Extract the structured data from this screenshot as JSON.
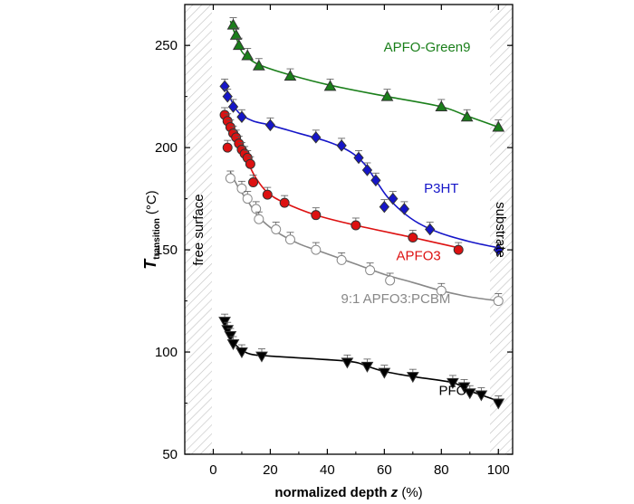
{
  "chart_data": {
    "type": "scatter",
    "xlabel": "normalized depth",
    "xlabel_var": "z",
    "xlabel_unit": "(%)",
    "ylabel_symbol": "T",
    "ylabel_sub": "transition",
    "ylabel_unit": "(°C)",
    "xlim": [
      -10,
      105
    ],
    "ylim": [
      50,
      270
    ],
    "xticks": [
      0,
      20,
      40,
      60,
      80,
      100
    ],
    "yticks": [
      50,
      100,
      150,
      200,
      250
    ],
    "x_tick_labels": [
      "0",
      "20",
      "40",
      "60",
      "80",
      "100"
    ],
    "y_tick_labels": [
      "50",
      "100",
      "150",
      "200",
      "250"
    ],
    "shaded_regions": [
      {
        "name": "free surface",
        "x_range": [
          -10,
          0
        ]
      },
      {
        "name": "substrate",
        "x_range": [
          100,
          105
        ]
      }
    ],
    "series": [
      {
        "name": "APFO-Green9",
        "color": "#1a7f1a",
        "marker": "triangle-up",
        "filled": true,
        "label_at": [
          75,
          247
        ],
        "points": [
          [
            7,
            260
          ],
          [
            8,
            255
          ],
          [
            9,
            250
          ],
          [
            12,
            245
          ],
          [
            16,
            240
          ],
          [
            27,
            235
          ],
          [
            41,
            230
          ],
          [
            61,
            225
          ],
          [
            80,
            220
          ],
          [
            89,
            215
          ],
          [
            100,
            210
          ]
        ],
        "curve": [
          [
            6,
            262
          ],
          [
            8,
            254
          ],
          [
            10,
            247
          ],
          [
            13,
            243
          ],
          [
            17,
            240
          ],
          [
            27,
            235.5
          ],
          [
            41,
            230.5
          ],
          [
            61,
            225
          ],
          [
            80,
            220
          ],
          [
            89,
            215.5
          ],
          [
            100,
            210
          ]
        ]
      },
      {
        "name": "P3HT",
        "color": "#1515c8",
        "marker": "diamond",
        "filled": true,
        "label_at": [
          80,
          178
        ],
        "points": [
          [
            4,
            230
          ],
          [
            5,
            225
          ],
          [
            7,
            220
          ],
          [
            10,
            215
          ],
          [
            20,
            211
          ],
          [
            36,
            205
          ],
          [
            45,
            201
          ],
          [
            51,
            195
          ],
          [
            54,
            189
          ],
          [
            57,
            184
          ],
          [
            60,
            171
          ],
          [
            63,
            175
          ],
          [
            67,
            170
          ],
          [
            76,
            160
          ],
          [
            100,
            150
          ]
        ],
        "curve": [
          [
            4,
            231
          ],
          [
            6,
            224
          ],
          [
            9,
            217
          ],
          [
            14,
            213
          ],
          [
            20,
            211
          ],
          [
            30,
            207
          ],
          [
            40,
            203
          ],
          [
            48,
            198
          ],
          [
            53,
            192
          ],
          [
            57,
            184
          ],
          [
            61,
            176
          ],
          [
            66,
            169
          ],
          [
            72,
            163
          ],
          [
            80,
            158
          ],
          [
            90,
            154
          ],
          [
            100,
            151
          ]
        ]
      },
      {
        "name": "APFO3",
        "color": "#dd1111",
        "marker": "circle",
        "filled": true,
        "label_at": [
          72,
          145
        ],
        "points": [
          [
            4,
            216
          ],
          [
            5,
            213
          ],
          [
            6,
            210
          ],
          [
            7,
            207
          ],
          [
            8,
            205
          ],
          [
            9,
            202
          ],
          [
            10,
            199
          ],
          [
            11,
            197
          ],
          [
            12,
            195
          ],
          [
            13,
            192
          ],
          [
            5,
            200
          ],
          [
            14,
            183
          ],
          [
            19,
            177
          ],
          [
            25,
            173
          ],
          [
            36,
            167
          ],
          [
            50,
            162
          ],
          [
            70,
            156
          ],
          [
            86,
            150
          ]
        ],
        "curve": [
          [
            4,
            217
          ],
          [
            6,
            209
          ],
          [
            9,
            200
          ],
          [
            12,
            193
          ],
          [
            15,
            185
          ],
          [
            19,
            178
          ],
          [
            25,
            173
          ],
          [
            36,
            167
          ],
          [
            50,
            162
          ],
          [
            70,
            156
          ],
          [
            86,
            151
          ]
        ]
      },
      {
        "name": "9:1 APFO3:PCBM",
        "color": "#888888",
        "marker": "circle",
        "filled": false,
        "label_at": [
          64,
          124
        ],
        "points": [
          [
            6,
            185
          ],
          [
            10,
            180
          ],
          [
            12,
            175
          ],
          [
            15,
            170
          ],
          [
            16,
            165
          ],
          [
            22,
            160
          ],
          [
            27,
            155
          ],
          [
            36,
            150
          ],
          [
            45,
            145
          ],
          [
            55,
            140
          ],
          [
            62,
            135
          ],
          [
            80,
            130
          ],
          [
            100,
            125
          ]
        ],
        "curve": [
          [
            6,
            188
          ],
          [
            9,
            180
          ],
          [
            12,
            174
          ],
          [
            16,
            166
          ],
          [
            22,
            159
          ],
          [
            30,
            153
          ],
          [
            40,
            148
          ],
          [
            50,
            143
          ],
          [
            60,
            138
          ],
          [
            70,
            134
          ],
          [
            80,
            130
          ],
          [
            90,
            127
          ],
          [
            100,
            125
          ]
        ]
      },
      {
        "name": "PFO",
        "color": "#000000",
        "marker": "triangle-down",
        "filled": true,
        "label_at": [
          84,
          79
        ],
        "points": [
          [
            4,
            115
          ],
          [
            5,
            111
          ],
          [
            6,
            108
          ],
          [
            7,
            104
          ],
          [
            10,
            100
          ],
          [
            17,
            98
          ],
          [
            47,
            95
          ],
          [
            54,
            93
          ],
          [
            60,
            90
          ],
          [
            70,
            88
          ],
          [
            84,
            85
          ],
          [
            88,
            83
          ],
          [
            90,
            80
          ],
          [
            94,
            79
          ],
          [
            100,
            75
          ]
        ],
        "curve": [
          [
            4,
            116
          ],
          [
            6,
            107
          ],
          [
            9,
            102
          ],
          [
            13,
            99
          ],
          [
            20,
            98
          ],
          [
            47,
            95.5
          ],
          [
            54,
            93
          ],
          [
            60,
            90.5
          ],
          [
            70,
            88
          ],
          [
            84,
            85
          ],
          [
            90,
            81
          ],
          [
            96,
            78
          ],
          [
            100,
            76
          ]
        ]
      }
    ]
  }
}
